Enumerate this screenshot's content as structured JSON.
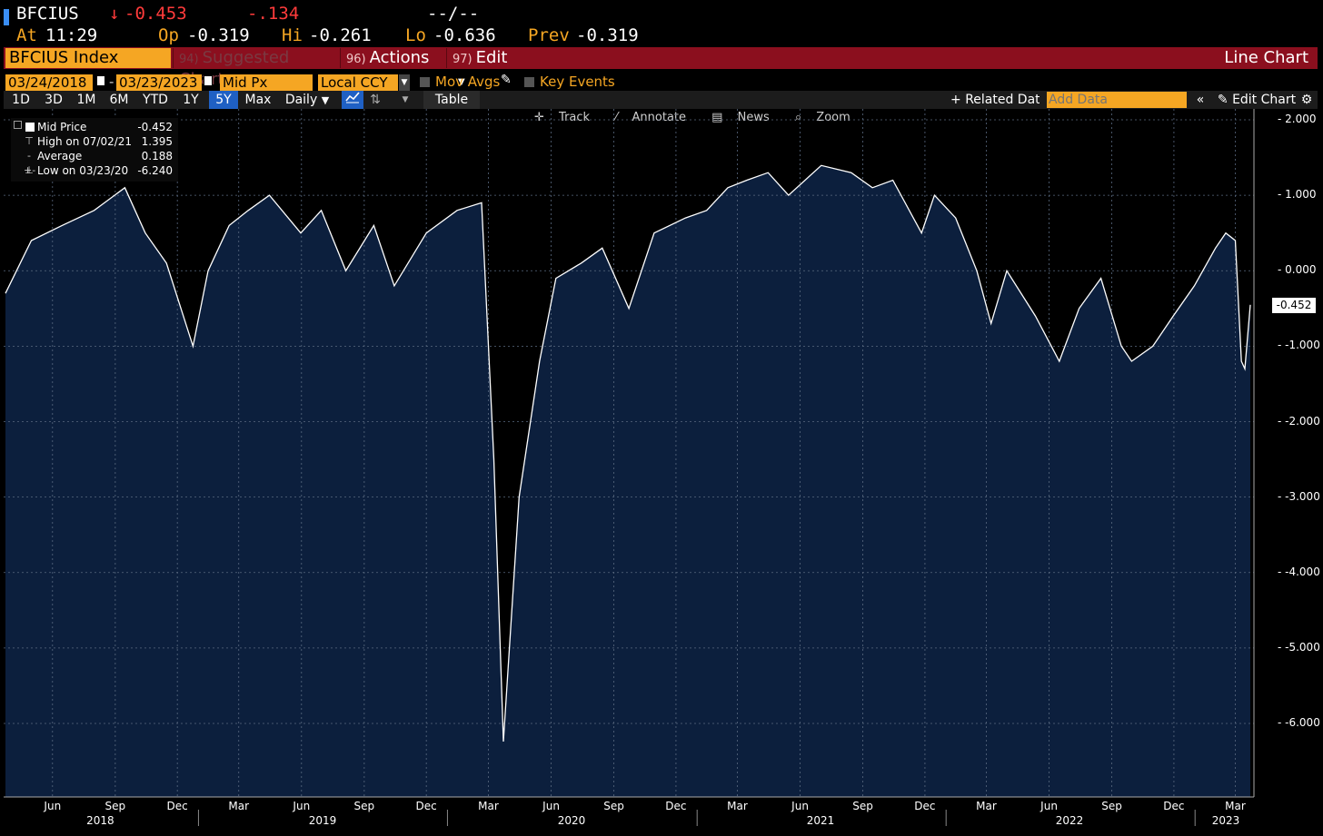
{
  "quote": {
    "ticker": "BFCIUS",
    "change_arrow": "↓",
    "last": "-0.453",
    "net_change": "-.134",
    "bid_ask": "--/--",
    "at_label": "At",
    "time": "11:29",
    "open_label": "Op",
    "open": "-0.319",
    "high_label": "Hi",
    "high": "-0.261",
    "low_label": "Lo",
    "low": "-0.636",
    "prev_label": "Prev",
    "prev": "-0.319"
  },
  "menubar": {
    "security": "BFCIUS Index",
    "suggested_num": "94)",
    "suggested_label": "Suggested Charts",
    "actions_num": "96)",
    "actions_label": "Actions",
    "edit_num": "97)",
    "edit_label": "Edit",
    "chart_type": "Line Chart"
  },
  "settings": {
    "start_date": "03/24/2018",
    "end_date": "03/23/2023",
    "field": "Mid Px",
    "currency": "Local CCY",
    "mov_avgs": "Mov Avgs",
    "key_events": "Key Events",
    "separator": "-"
  },
  "range_bar": {
    "ranges": [
      "1D",
      "3D",
      "1M",
      "6M",
      "YTD",
      "1Y",
      "5Y",
      "Max"
    ],
    "selected": "5Y",
    "frequency": "Daily",
    "table": "Table",
    "related": "Related Data",
    "add_data_placeholder": "Add Data",
    "edit_chart": "Edit Chart"
  },
  "tools": {
    "track": "Track",
    "annotate": "Annotate",
    "news": "News",
    "zoom": "Zoom"
  },
  "legend": {
    "mid_label": "Mid Price",
    "mid_value": "-0.452",
    "high_label": "High on 07/02/21",
    "high_value": "1.395",
    "avg_label": "Average",
    "avg_value": "0.188",
    "low_label": "Low on 03/23/20",
    "low_value": "-6.240"
  },
  "colors": {
    "accent_orange": "#f5a623",
    "menu_red": "#8b0f1e",
    "area_fill": "#0c1f3d",
    "selected_blue": "#1f60c4",
    "negative": "#ff3b3b"
  },
  "chart_data": {
    "type": "area",
    "title": "",
    "xlabel": "",
    "ylabel": "",
    "ylim": [
      -7,
      2
    ],
    "grid": true,
    "last_value_label": "-0.452",
    "y_ticks": [
      "2.000",
      "1.000",
      "0.000",
      "-1.000",
      "-2.000",
      "-3.000",
      "-4.000",
      "-5.000",
      "-6.000"
    ],
    "month_ticks": [
      "Jun",
      "Sep",
      "Dec",
      "Mar",
      "Jun",
      "Sep",
      "Dec",
      "Mar",
      "Jun",
      "Sep",
      "Dec",
      "Mar",
      "Jun",
      "Sep",
      "Dec",
      "Mar",
      "Jun",
      "Sep",
      "Dec",
      "Mar"
    ],
    "year_ticks": [
      "2018",
      "2019",
      "2020",
      "2021",
      "2022",
      "2023"
    ],
    "series": [
      {
        "x": [
          "2018-03-24",
          "2018-05-01",
          "2018-06-15",
          "2018-08-01",
          "2018-09-15",
          "2018-10-15",
          "2018-11-15",
          "2018-12-24",
          "2019-01-15",
          "2019-02-15",
          "2019-03-15",
          "2019-04-15",
          "2019-05-31",
          "2019-06-30",
          "2019-08-05",
          "2019-09-15",
          "2019-10-15",
          "2019-12-01",
          "2020-01-15",
          "2020-02-20",
          "2020-03-09",
          "2020-03-23",
          "2020-04-15",
          "2020-05-15",
          "2020-06-08",
          "2020-07-15",
          "2020-08-15",
          "2020-09-23",
          "2020-10-30",
          "2020-12-15",
          "2021-01-15",
          "2021-02-15",
          "2021-03-15",
          "2021-04-15",
          "2021-05-15",
          "2021-07-02",
          "2021-08-15",
          "2021-09-15",
          "2021-10-15",
          "2021-11-26",
          "2021-12-15",
          "2022-01-15",
          "2022-02-15",
          "2022-03-08",
          "2022-03-31",
          "2022-05-12",
          "2022-06-16",
          "2022-07-15",
          "2022-08-16",
          "2022-09-15",
          "2022-09-30",
          "2022-10-31",
          "2022-11-30",
          "2022-12-31",
          "2023-01-31",
          "2023-02-15",
          "2023-03-01",
          "2023-03-10",
          "2023-03-15",
          "2023-03-23"
        ],
        "values": [
          -0.3,
          0.4,
          0.6,
          0.8,
          1.1,
          0.5,
          0.1,
          -1.0,
          0.0,
          0.6,
          0.8,
          1.0,
          0.5,
          0.8,
          0.0,
          0.6,
          -0.2,
          0.5,
          0.8,
          0.9,
          -2.5,
          -6.24,
          -3.0,
          -1.2,
          -0.1,
          0.1,
          0.3,
          -0.5,
          0.5,
          0.7,
          0.8,
          1.1,
          1.2,
          1.3,
          1.0,
          1.395,
          1.3,
          1.1,
          1.2,
          0.5,
          1.0,
          0.7,
          0.0,
          -0.7,
          0.0,
          -0.6,
          -1.2,
          -0.5,
          -0.1,
          -1.0,
          -1.2,
          -1.0,
          -0.6,
          -0.2,
          0.3,
          0.5,
          0.4,
          -1.2,
          -1.3,
          -0.452
        ]
      }
    ]
  }
}
